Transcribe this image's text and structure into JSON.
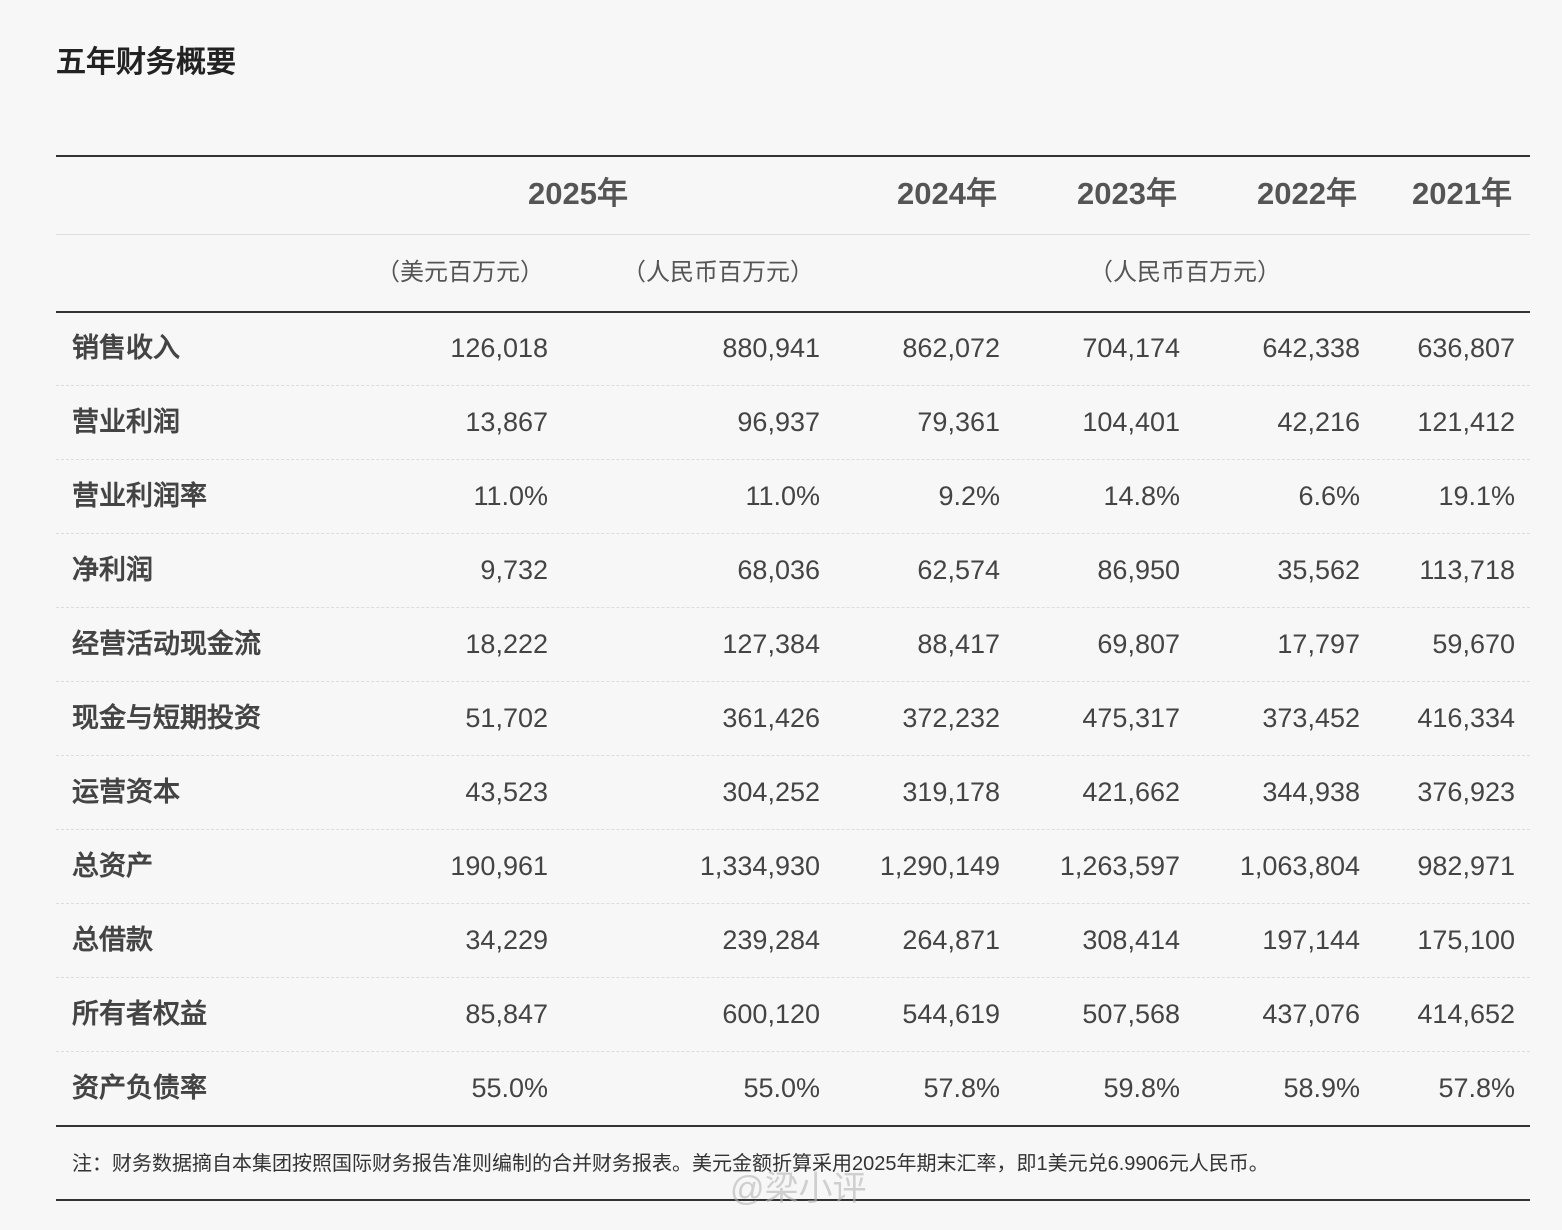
{
  "header": {
    "title": "五年财务概要"
  },
  "table": {
    "years": [
      "2025年",
      "2024年",
      "2023年",
      "2022年",
      "2021年"
    ],
    "units": [
      "（美元百万元）",
      "（人民币百万元）",
      "（人民币百万元）"
    ],
    "rows": [
      {
        "label": "销售收入",
        "values": [
          "126,018",
          "880,941",
          "862,072",
          "704,174",
          "642,338",
          "636,807"
        ]
      },
      {
        "label": "营业利润",
        "values": [
          "13,867",
          "96,937",
          "79,361",
          "104,401",
          "42,216",
          "121,412"
        ]
      },
      {
        "label": "营业利润率",
        "values": [
          "11.0%",
          "11.0%",
          "9.2%",
          "14.8%",
          "6.6%",
          "19.1%"
        ]
      },
      {
        "label": "净利润",
        "values": [
          "9,732",
          "68,036",
          "62,574",
          "86,950",
          "35,562",
          "113,718"
        ]
      },
      {
        "label": "经营活动现金流",
        "values": [
          "18,222",
          "127,384",
          "88,417",
          "69,807",
          "17,797",
          "59,670"
        ]
      },
      {
        "label": "现金与短期投资",
        "values": [
          "51,702",
          "361,426",
          "372,232",
          "475,317",
          "373,452",
          "416,334"
        ]
      },
      {
        "label": "运营资本",
        "values": [
          "43,523",
          "304,252",
          "319,178",
          "421,662",
          "344,938",
          "376,923"
        ]
      },
      {
        "label": "总资产",
        "values": [
          "190,961",
          "1,334,930",
          "1,290,149",
          "1,263,597",
          "1,063,804",
          "982,971"
        ]
      },
      {
        "label": "总借款",
        "values": [
          "34,229",
          "239,284",
          "264,871",
          "308,414",
          "197,144",
          "175,100"
        ]
      },
      {
        "label": "所有者权益",
        "values": [
          "85,847",
          "600,120",
          "544,619",
          "507,568",
          "437,076",
          "414,652"
        ]
      },
      {
        "label": "资产负债率",
        "values": [
          "55.0%",
          "55.0%",
          "57.8%",
          "59.8%",
          "58.9%",
          "57.8%"
        ]
      }
    ]
  },
  "note": "注：财务数据摘自本集团按照国际财务报告准则编制的合并财务报表。美元金额折算采用2025年期末汇率，即1美元兑6.9906元人民币。",
  "watermark": "@梁小评"
}
